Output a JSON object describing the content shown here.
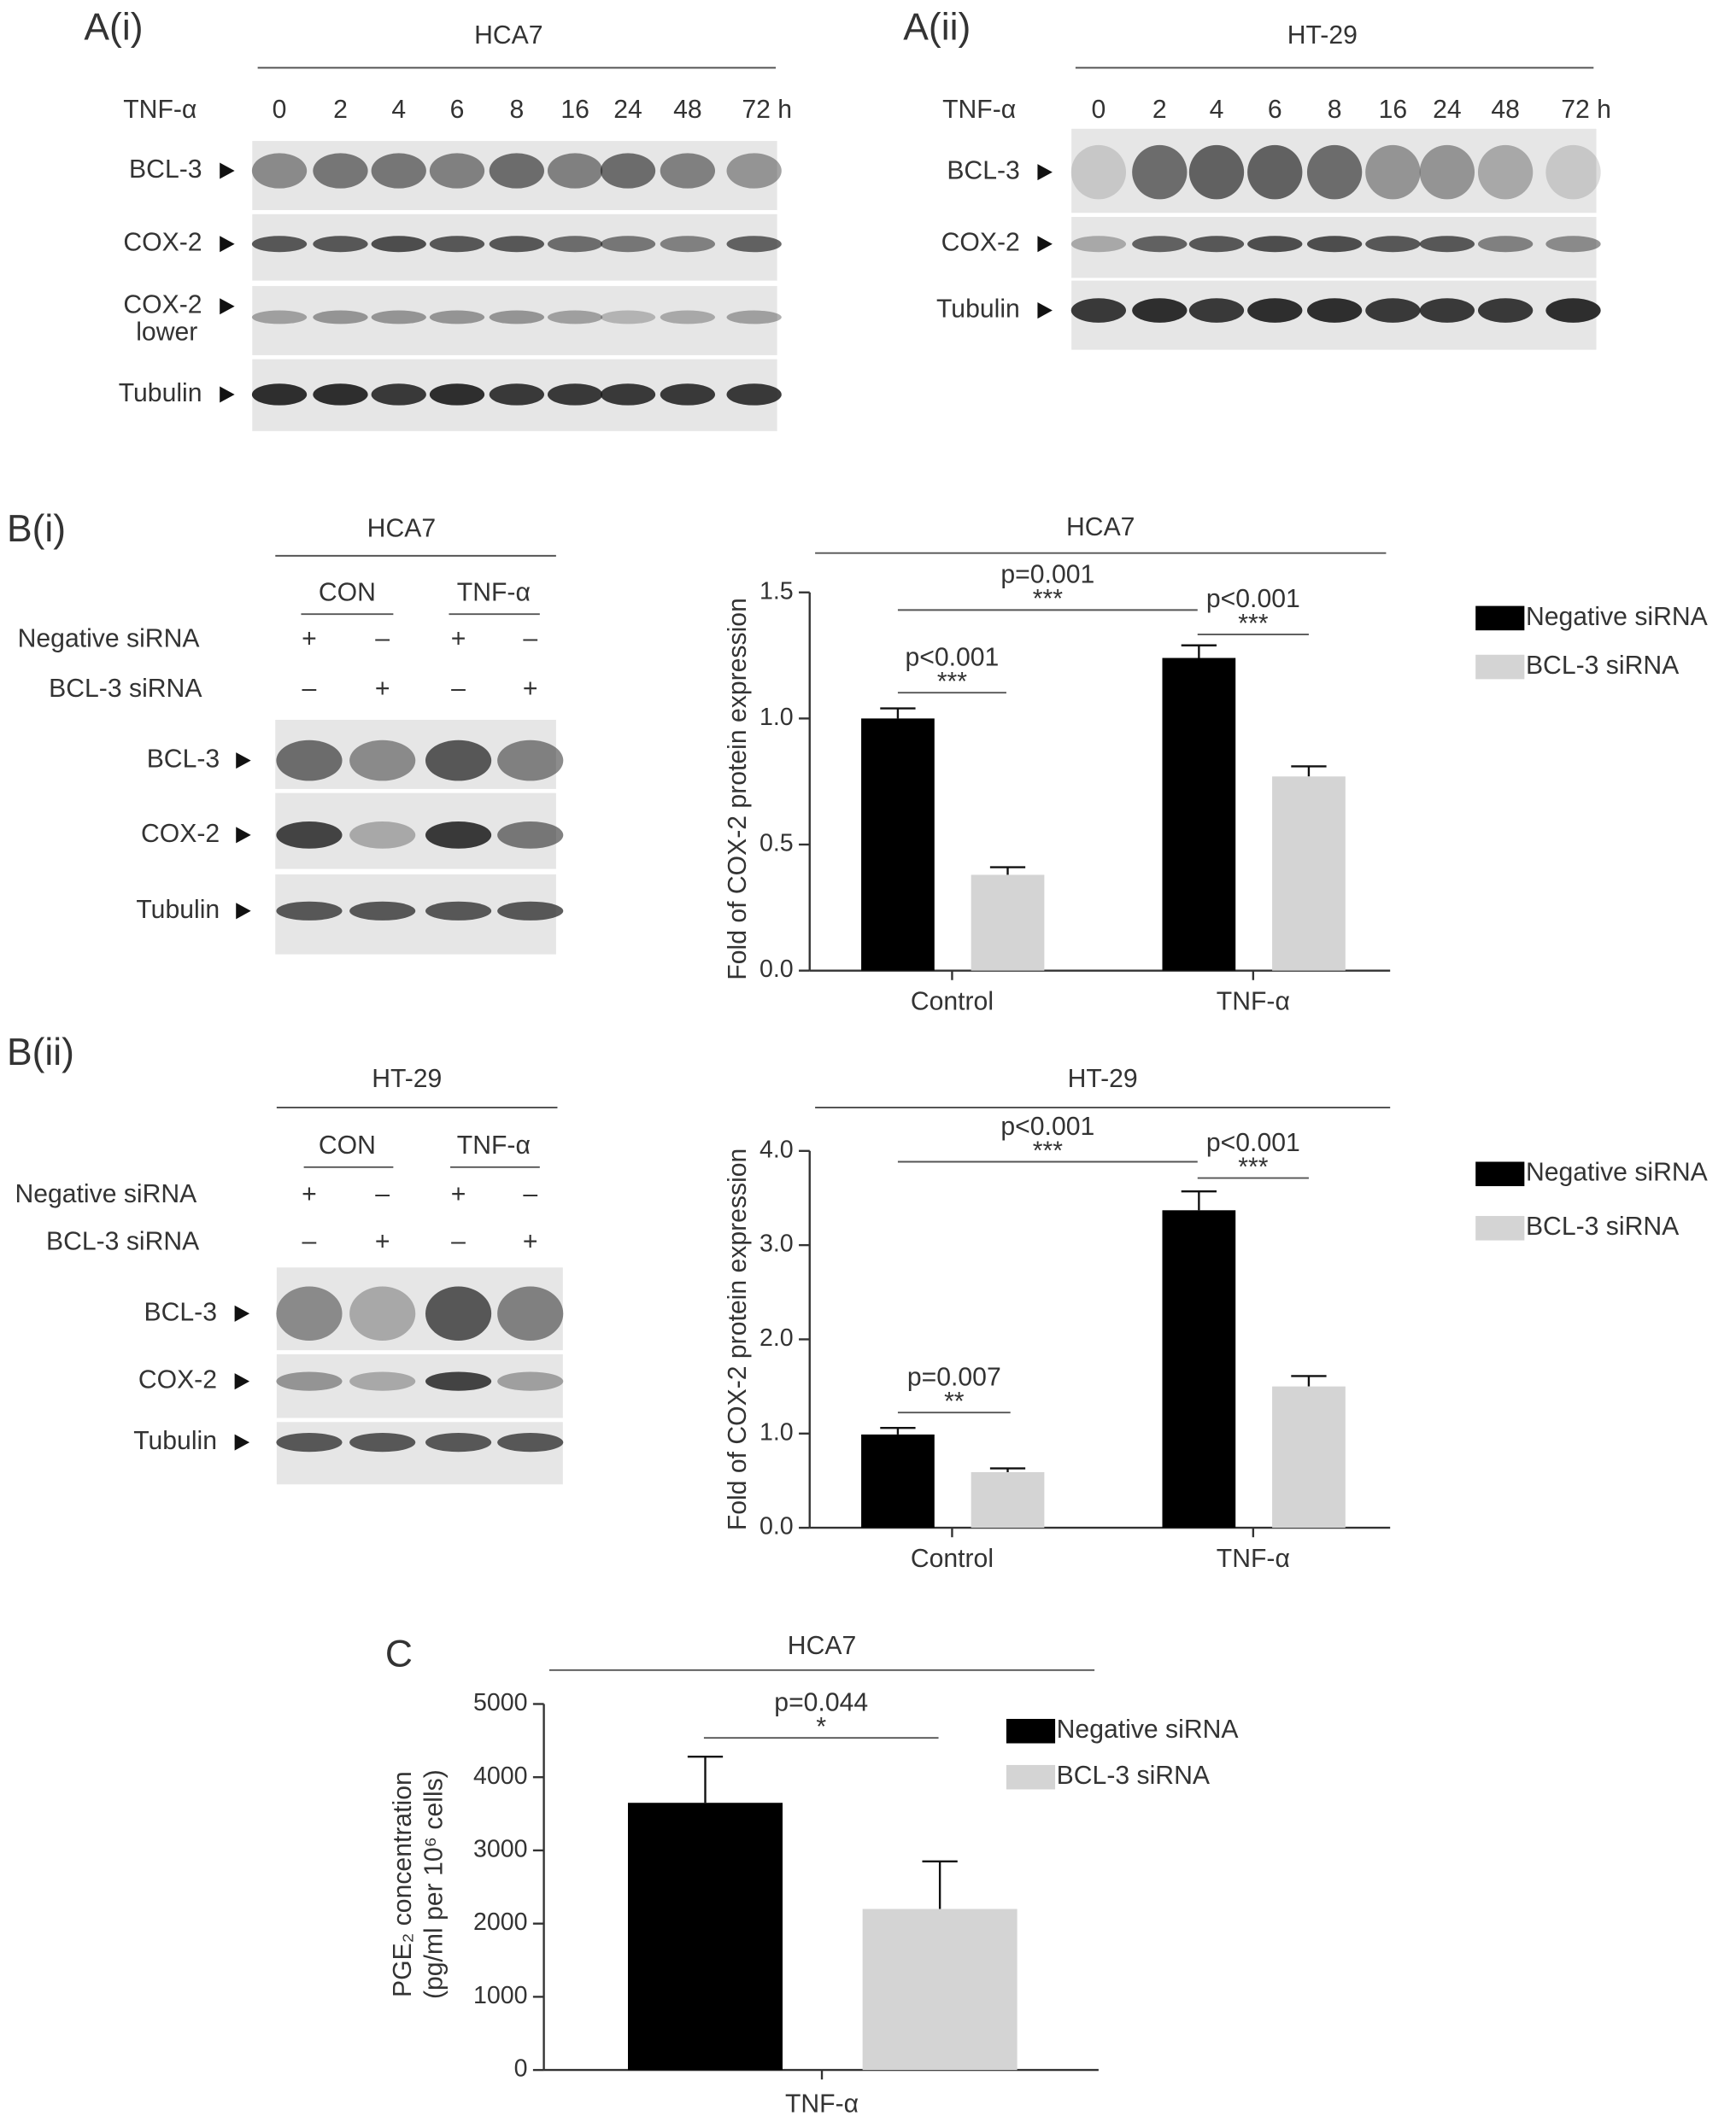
{
  "blots": [
    {
      "label": "A(i)",
      "cell_line": "HCA7",
      "treatment": "TNF-α",
      "lanes": [
        "0",
        "2",
        "4",
        "6",
        "8",
        "16",
        "24",
        "48",
        "72 h"
      ],
      "rows": [
        {
          "label": "BCL-3"
        },
        {
          "label": "COX-2"
        },
        {
          "label": "COX-2",
          "sublabel": "lower"
        },
        {
          "label": "Tubulin"
        }
      ]
    },
    {
      "label": "A(ii)",
      "cell_line": "HT-29",
      "treatment": "TNF-α",
      "lanes": [
        "0",
        "2",
        "4",
        "6",
        "8",
        "16",
        "24",
        "48",
        "72 h"
      ],
      "rows": [
        {
          "label": "BCL-3"
        },
        {
          "label": "COX-2"
        },
        {
          "label": "Tubulin"
        }
      ]
    },
    {
      "label": "B(i)",
      "cell_line": "HCA7",
      "groups": [
        "CON",
        "TNF-α"
      ],
      "conditions": [
        {
          "name": "Negative siRNA",
          "signs": [
            "+",
            "–",
            "+",
            "–"
          ]
        },
        {
          "name": "BCL-3 siRNA",
          "signs": [
            "–",
            "+",
            "–",
            "+"
          ]
        }
      ],
      "rows": [
        {
          "label": "BCL-3"
        },
        {
          "label": "COX-2"
        },
        {
          "label": "Tubulin"
        }
      ]
    },
    {
      "label": "B(ii)",
      "cell_line": "HT-29",
      "groups": [
        "CON",
        "TNF-α"
      ],
      "conditions": [
        {
          "name": "Negative siRNA",
          "signs": [
            "+",
            "–",
            "+",
            "–"
          ]
        },
        {
          "name": "BCL-3 siRNA",
          "signs": [
            "–",
            "+",
            "–",
            "+"
          ]
        }
      ],
      "rows": [
        {
          "label": "BCL-3"
        },
        {
          "label": "COX-2"
        },
        {
          "label": "Tubulin"
        }
      ]
    }
  ],
  "chart_data": [
    {
      "type": "bar",
      "title": "HCA7",
      "ylabel": [
        "Fold of COX-2 protein expression"
      ],
      "categories": [
        "Control",
        "TNF-α"
      ],
      "series": [
        {
          "name": "Negative siRNA",
          "color": "#000000",
          "values": [
            1.0,
            1.24
          ],
          "errors": [
            0.04,
            0.05
          ]
        },
        {
          "name": "BCL-3 siRNA",
          "color": "#d4d4d4",
          "values": [
            0.38,
            0.77
          ],
          "errors": [
            0.03,
            0.04
          ]
        }
      ],
      "ylim": [
        0,
        1.5
      ],
      "yticks": [
        {
          "value": 0,
          "label": "0.0"
        },
        0.5,
        {
          "value": 1,
          "label": "1.0"
        },
        1.5
      ],
      "annotations": [
        {
          "text": "p<0.001",
          "stars": "***"
        },
        {
          "text": "p=0.001",
          "stars": "***"
        },
        {
          "text": "p<0.001",
          "stars": "***"
        }
      ],
      "legend": true
    },
    {
      "type": "bar",
      "title": "HT-29",
      "ylabel": [
        "Fold of COX-2 protein expression"
      ],
      "categories": [
        "Control",
        "TNF-α"
      ],
      "series": [
        {
          "name": "Negative siRNA",
          "color": "#000000",
          "values": [
            0.99,
            3.37
          ],
          "errors": [
            0.07,
            0.2
          ]
        },
        {
          "name": "BCL-3 siRNA",
          "color": "#d4d4d4",
          "values": [
            0.59,
            1.5
          ],
          "errors": [
            0.04,
            0.11
          ]
        }
      ],
      "ylim": [
        0,
        4
      ],
      "yticks": [
        {
          "value": 0,
          "label": "0.0"
        },
        {
          "value": 1,
          "label": "1.0"
        },
        {
          "value": 2,
          "label": "2.0"
        },
        {
          "value": 3,
          "label": "3.0"
        },
        {
          "value": 4,
          "label": "4.0"
        }
      ],
      "annotations": [
        {
          "text": "p=0.007",
          "stars": "**"
        },
        {
          "text": "p<0.001",
          "stars": "***"
        },
        {
          "text": "p<0.001",
          "stars": "***"
        }
      ],
      "legend": true
    },
    {
      "type": "bar",
      "panel": "C",
      "title": "HCA7",
      "ylabel": [
        "PGE₂ concentration",
        "(pg/ml per 10⁶ cells)"
      ],
      "categories": [
        "TNF-α"
      ],
      "series": [
        {
          "name": "Negative siRNA",
          "color": "#000000",
          "values": [
            3650
          ],
          "errors": [
            630
          ]
        },
        {
          "name": "BCL-3 siRNA",
          "color": "#d4d4d4",
          "values": [
            2200
          ],
          "errors": [
            650
          ]
        }
      ],
      "ylim": [
        0,
        5000
      ],
      "yticks": [
        0,
        1000,
        2000,
        3000,
        4000,
        5000
      ],
      "annotations": [
        {
          "text": "p=0.044",
          "stars": "*"
        }
      ],
      "legend": true
    }
  ]
}
